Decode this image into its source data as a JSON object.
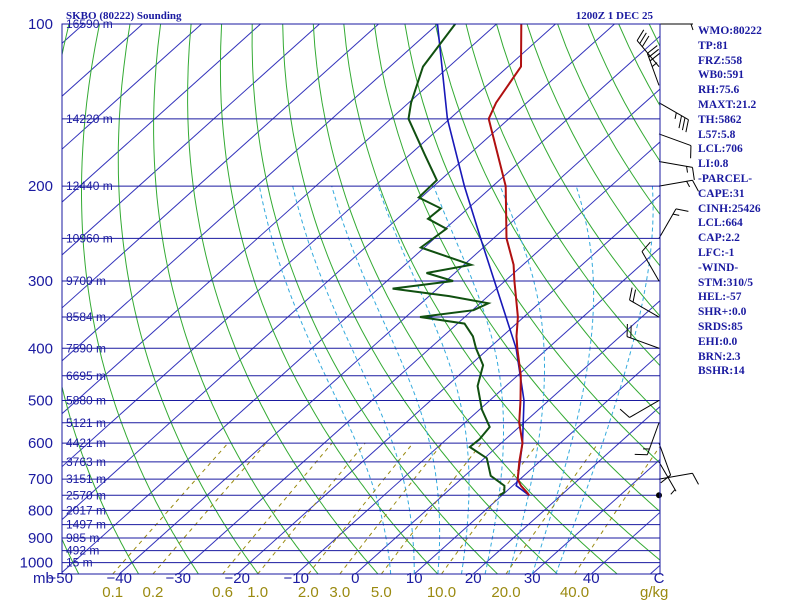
{
  "chart_data": {
    "type": "skew-t log-p sounding",
    "title": "SKBO (80222) Sounding",
    "valid_time": "1200Z  1 DEC 25",
    "y_axis_unit": "mb",
    "mixing_ratio_unit": "g/kg",
    "pressure_levels_mb": [
      100,
      200,
      300,
      400,
      500,
      600,
      700,
      800,
      900,
      1000
    ],
    "pressure_tick_labels": [
      "100",
      "200",
      "300",
      "400",
      "500",
      "600",
      "700",
      "800",
      "900",
      "1000"
    ],
    "temperature_ticks_c": [
      -50,
      -40,
      -30,
      -20,
      -10,
      0,
      10,
      20,
      30,
      40
    ],
    "temperature_tick_labels": [
      "−50",
      "−40",
      "−30",
      "−20",
      "−10",
      "0",
      "10",
      "20",
      "30",
      "40",
      "C"
    ],
    "mixing_ratio_tick_labels": [
      "0.1",
      "0.2",
      "0.6",
      "1.0",
      "2.0",
      "3.0",
      "5.0",
      "10.0",
      "20.0",
      "40.0",
      "g/kg"
    ],
    "height_labels": [
      {
        "p": 100,
        "label": "16590 m"
      },
      {
        "p": 150,
        "label": "14220 m"
      },
      {
        "p": 200,
        "label": "12440 m"
      },
      {
        "p": 250,
        "label": "10960 m"
      },
      {
        "p": 300,
        "label": "9700 m"
      },
      {
        "p": 350,
        "label": "8584 m"
      },
      {
        "p": 400,
        "label": "7590 m"
      },
      {
        "p": 450,
        "label": "6695 m"
      },
      {
        "p": 500,
        "label": "5880 m"
      },
      {
        "p": 550,
        "label": "5121 m"
      },
      {
        "p": 600,
        "label": "4421 m"
      },
      {
        "p": 650,
        "label": "3763 m"
      },
      {
        "p": 700,
        "label": "3151 m"
      },
      {
        "p": 750,
        "label": "2570 m"
      },
      {
        "p": 800,
        "label": "2017 m"
      },
      {
        "p": 850,
        "label": "1497 m"
      },
      {
        "p": 900,
        "label": "985 m"
      },
      {
        "p": 950,
        "label": "492 m"
      },
      {
        "p": 1000,
        "label": "15 m"
      }
    ],
    "temperature_profile": [
      {
        "p": 750,
        "t": 14.6
      },
      {
        "p": 740,
        "t": 13.6
      },
      {
        "p": 720,
        "t": 11.4
      },
      {
        "p": 700,
        "t": 9.6
      },
      {
        "p": 650,
        "t": 6.6
      },
      {
        "p": 600,
        "t": 3.6
      },
      {
        "p": 550,
        "t": -0.8
      },
      {
        "p": 500,
        "t": -4.8
      },
      {
        "p": 450,
        "t": -9.4
      },
      {
        "p": 400,
        "t": -15.2
      },
      {
        "p": 380,
        "t": -17.6
      },
      {
        "p": 350,
        "t": -21.0
      },
      {
        "p": 300,
        "t": -28.4
      },
      {
        "p": 280,
        "t": -31.6
      },
      {
        "p": 250,
        "t": -37.8
      },
      {
        "p": 200,
        "t": -47.8
      },
      {
        "p": 150,
        "t": -63.4
      },
      {
        "p": 140,
        "t": -65.2
      },
      {
        "p": 120,
        "t": -67.8
      },
      {
        "p": 100,
        "t": -75.8
      }
    ],
    "dewpoint_profile": [
      {
        "p": 750,
        "td": 9.6
      },
      {
        "p": 740,
        "td": 9.8
      },
      {
        "p": 720,
        "td": 8.6
      },
      {
        "p": 690,
        "td": 4.4
      },
      {
        "p": 640,
        "td": 0.4
      },
      {
        "p": 610,
        "td": -4.6
      },
      {
        "p": 590,
        "td": -4.4
      },
      {
        "p": 560,
        "td": -5.0
      },
      {
        "p": 520,
        "td": -9.6
      },
      {
        "p": 470,
        "td": -14.8
      },
      {
        "p": 430,
        "td": -17.8
      },
      {
        "p": 400,
        "td": -22.2
      },
      {
        "p": 380,
        "td": -25.0
      },
      {
        "p": 360,
        "td": -28.8
      },
      {
        "p": 350,
        "td": -37.6
      },
      {
        "p": 340,
        "td": -29.8
      },
      {
        "p": 330,
        "td": -28.6
      },
      {
        "p": 320,
        "td": -36.6
      },
      {
        "p": 310,
        "td": -47.6
      },
      {
        "p": 300,
        "td": -38.8
      },
      {
        "p": 290,
        "td": -44.8
      },
      {
        "p": 280,
        "td": -38.8
      },
      {
        "p": 260,
        "td": -50.6
      },
      {
        "p": 240,
        "td": -49.8
      },
      {
        "p": 230,
        "td": -54.8
      },
      {
        "p": 220,
        "td": -54.6
      },
      {
        "p": 210,
        "td": -60.4
      },
      {
        "p": 195,
        "td": -60.6
      },
      {
        "p": 175,
        "td": -67.4
      },
      {
        "p": 150,
        "td": -77.0
      },
      {
        "p": 140,
        "td": -79.6
      },
      {
        "p": 120,
        "td": -84.4
      },
      {
        "p": 100,
        "td": -87.0
      }
    ],
    "parcel_profile": [
      {
        "p": 750,
        "t": 14.6
      },
      {
        "p": 720,
        "t": 10.6
      },
      {
        "p": 700,
        "t": 9.6
      },
      {
        "p": 600,
        "t": 3.6
      },
      {
        "p": 500,
        "t": -4.2
      },
      {
        "p": 400,
        "t": -15.4
      },
      {
        "p": 300,
        "t": -31.8
      },
      {
        "p": 250,
        "t": -42.2
      },
      {
        "p": 200,
        "t": -54.8
      },
      {
        "p": 150,
        "t": -70.4
      },
      {
        "p": 100,
        "t": -90.0
      }
    ],
    "wind_barbs": [
      {
        "p": 750,
        "dir": 90,
        "spd": 0
      },
      {
        "p": 700,
        "dir": 80,
        "spd": 10
      },
      {
        "p": 650,
        "dir": 150,
        "spd": 5
      },
      {
        "p": 600,
        "dir": 160,
        "spd": 10
      },
      {
        "p": 550,
        "dir": 200,
        "spd": 15
      },
      {
        "p": 500,
        "dir": 240,
        "spd": 10
      },
      {
        "p": 400,
        "dir": 290,
        "spd": 20
      },
      {
        "p": 350,
        "dir": 300,
        "spd": 20
      },
      {
        "p": 300,
        "dir": 330,
        "spd": 10
      },
      {
        "p": 250,
        "dir": 30,
        "spd": 15
      },
      {
        "p": 200,
        "dir": 80,
        "spd": 15
      },
      {
        "p": 180,
        "dir": 100,
        "spd": 15
      },
      {
        "p": 160,
        "dir": 110,
        "spd": 10
      },
      {
        "p": 140,
        "dir": 120,
        "spd": 35
      },
      {
        "p": 130,
        "dir": 340,
        "spd": 35
      },
      {
        "p": 120,
        "dir": 320,
        "spd": 30
      },
      {
        "p": 100,
        "dir": 90,
        "spd": 5
      }
    ],
    "colors": {
      "isobar": "#1a1aa0",
      "isotherm": "#3333bb",
      "dry_adiabat": "#33aa33",
      "moist_adiabat": "#33aadd",
      "mixing_ratio": "#9a8a10",
      "temperature": "#b01010",
      "dewpoint": "#105010",
      "parcel": "#1818b8",
      "text": "#1a1aa0"
    }
  },
  "indices": [
    "WMO:80222",
    "TP:81",
    "FRZ:558",
    "WB0:591",
    "RH:75.6",
    "MAXT:21.2",
    "TH:5862",
    "L57:5.8",
    "LCL:706",
    "LI:0.8",
    "-PARCEL-",
    "CAPE:31",
    "CINH:25426",
    "LCL:664",
    "CAP:2.2",
    "LFC:-1",
    "-WIND-",
    "STM:310/5",
    "HEL:-57",
    "SHR+:0.0",
    "SRDS:85",
    "EHI:0.0",
    "BRN:2.3",
    "BSHR:14"
  ]
}
